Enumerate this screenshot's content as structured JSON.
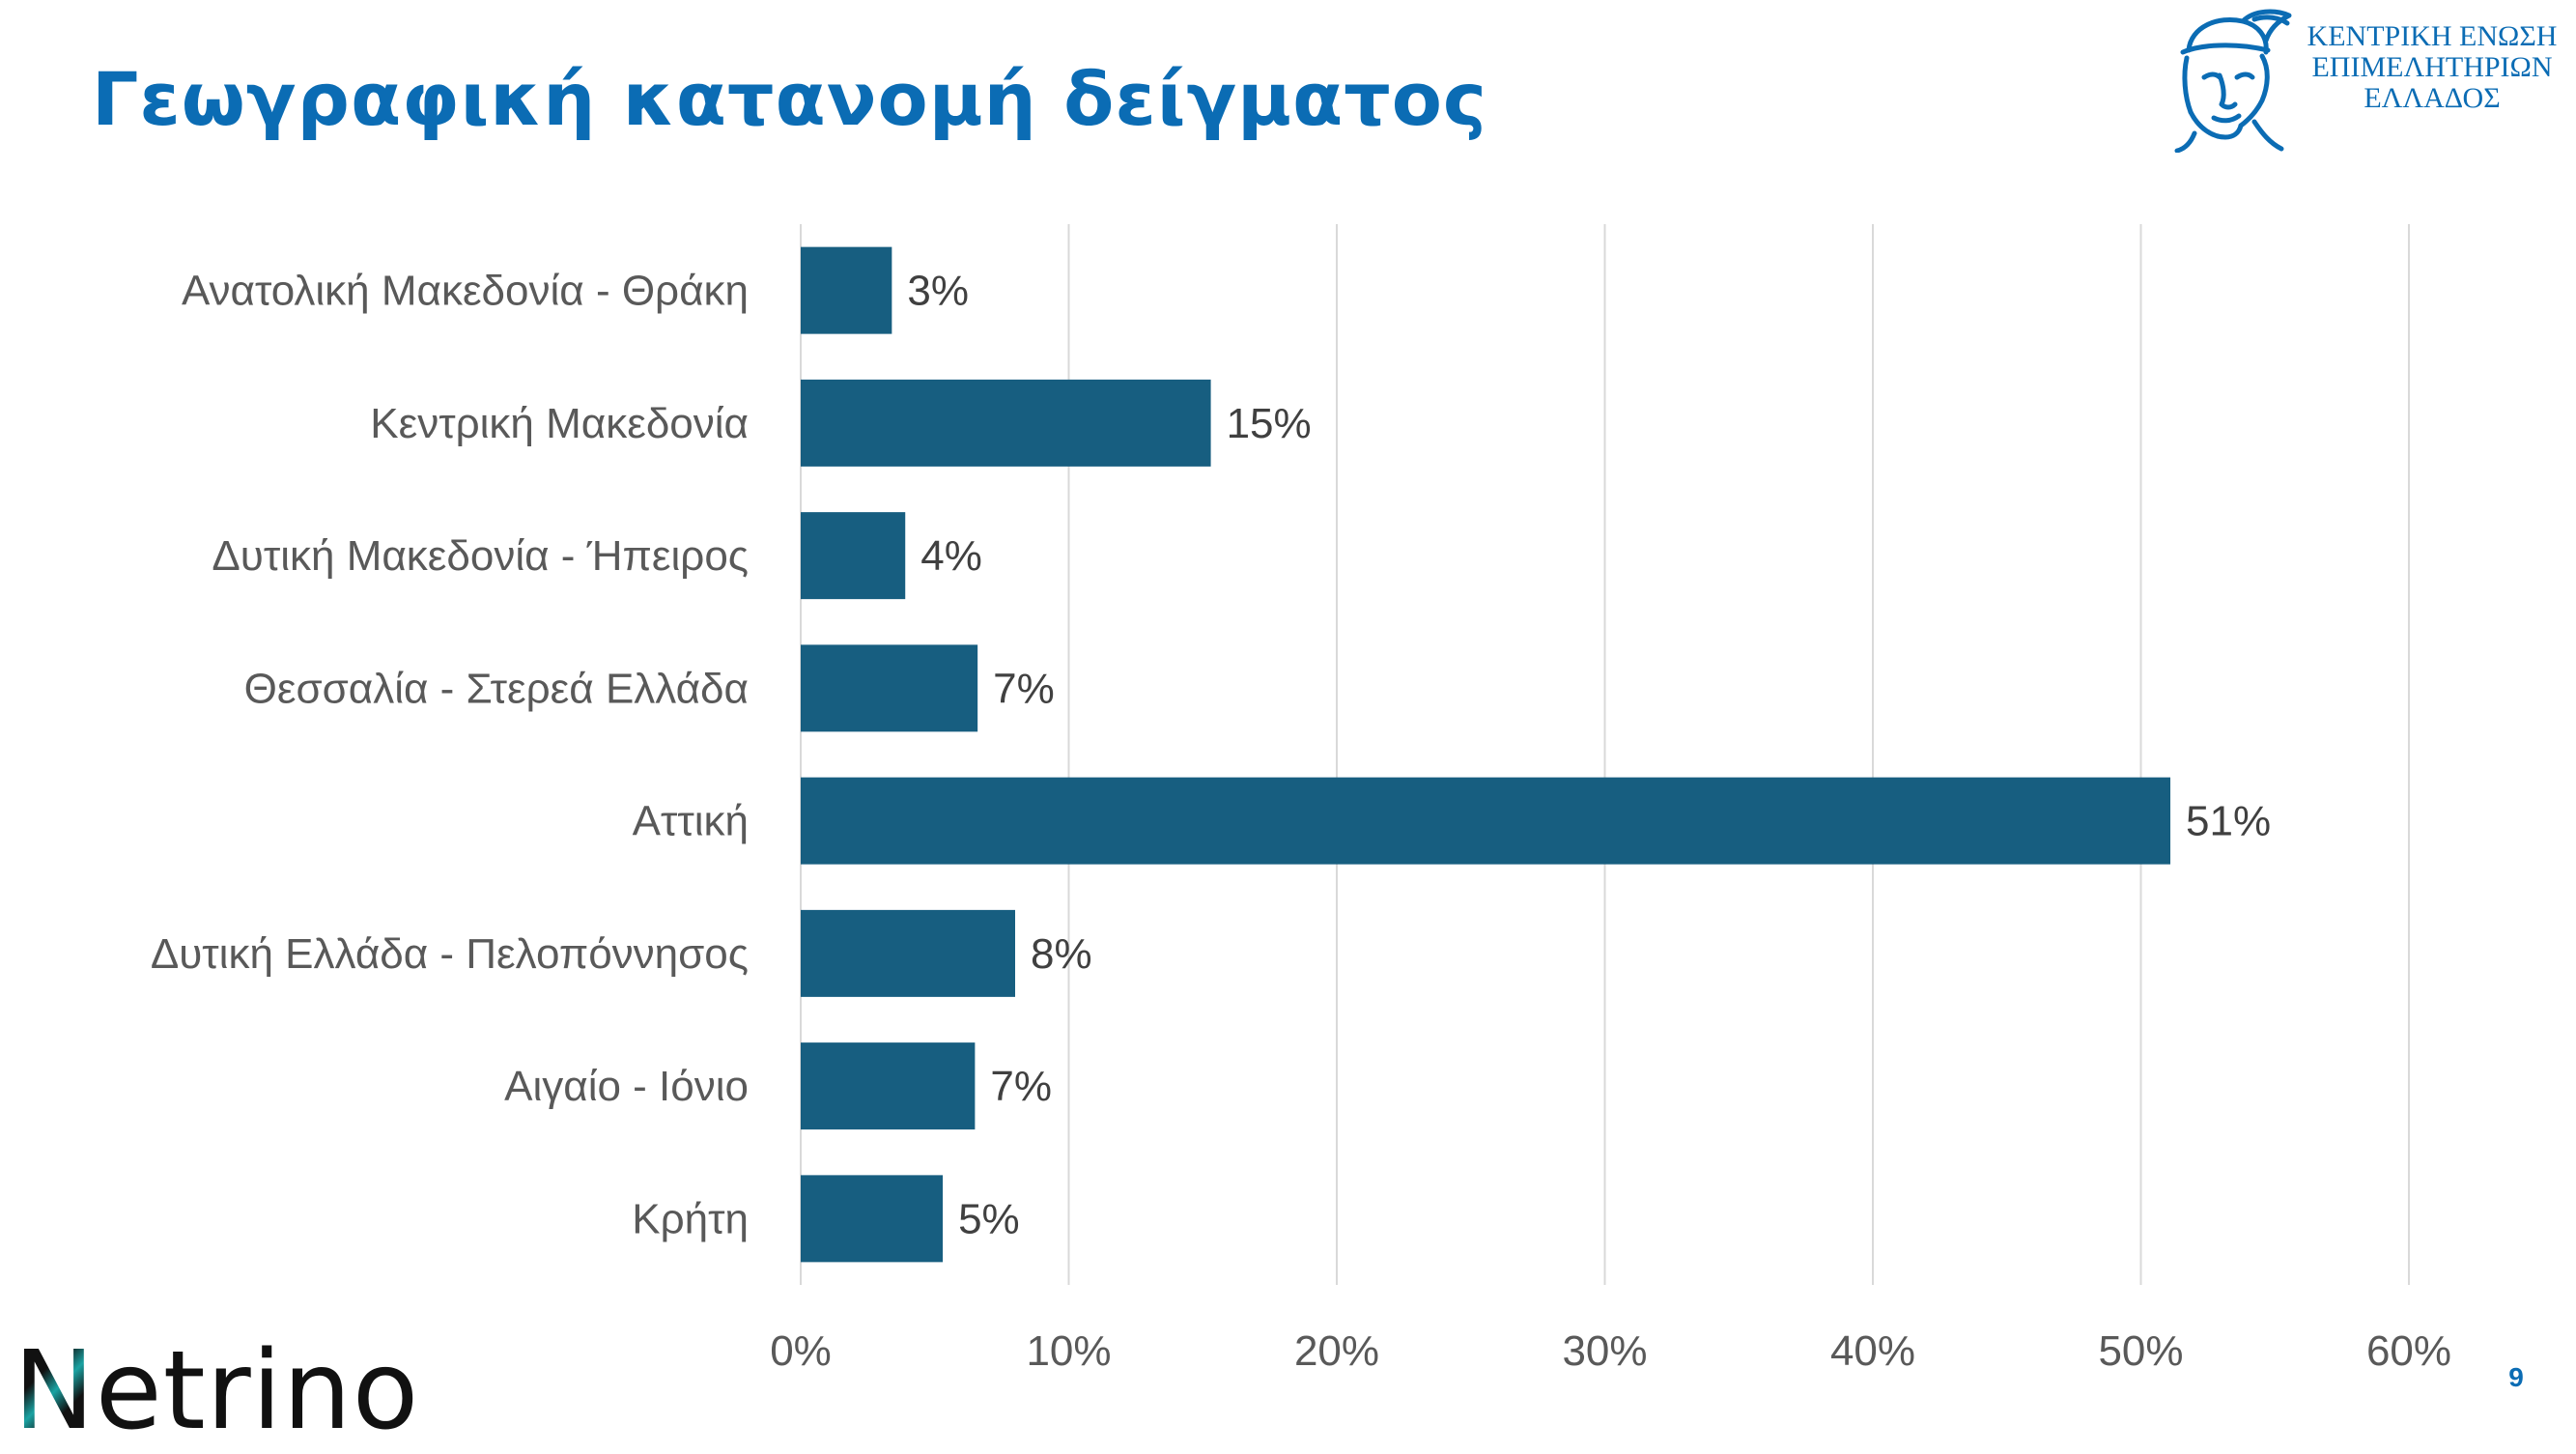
{
  "slide": {
    "title": "Γεωγραφική κατανομή δείγματος",
    "page_number": "9"
  },
  "logos": {
    "keeh": {
      "lines": [
        "ΚΕΝΤΡΙΚΗ ΕΝΩΣΗ",
        "ΕΠΙΜΕΛΗΤΗΡΙΩΝ",
        "ΕΛΛΑΔΟΣ"
      ],
      "icon": "hermes-head-icon",
      "color": "#0b6cb4"
    },
    "netrino": {
      "text": "Netrino",
      "accent_color": "#1aa3a3"
    }
  },
  "chart_data": {
    "type": "bar",
    "orientation": "horizontal",
    "categories": [
      "Ανατολική Μακεδονία - Θράκη",
      "Κεντρική  Μακεδονία",
      "Δυτική Μακεδονία - Ήπειρος",
      "Θεσσαλία - Στερεά Ελλάδα",
      "Αττική",
      "Δυτική Ελλάδα - Πελοπόννησος",
      "Αιγαίο - Ιόνιο",
      "Κρήτη"
    ],
    "values": [
      3.4,
      15.3,
      3.9,
      6.6,
      51.1,
      8.0,
      6.5,
      5.3
    ],
    "data_labels": [
      "3%",
      "15%",
      "4%",
      "7%",
      "51%",
      "8%",
      "7%",
      "5%"
    ],
    "x_ticks": [
      "0%",
      "10%",
      "20%",
      "30%",
      "40%",
      "50%",
      "60%"
    ],
    "xlim": [
      0,
      60
    ],
    "xlabel": "",
    "ylabel": "",
    "grid": "vertical",
    "legend": "none",
    "bar_color": "#175e80",
    "grid_color": "#d9d9d9",
    "text_color": "#595959"
  }
}
